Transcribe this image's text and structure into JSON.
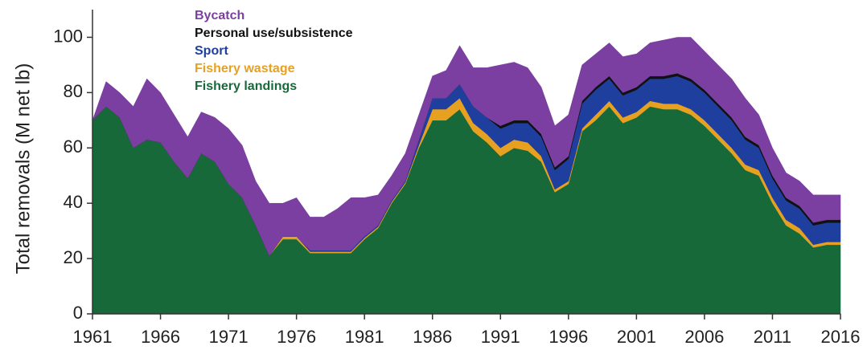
{
  "chart_data": {
    "type": "stacked_area",
    "y_label": "Total removals (M net lb)",
    "x": [
      1961,
      1962,
      1963,
      1964,
      1965,
      1966,
      1967,
      1968,
      1969,
      1970,
      1971,
      1972,
      1973,
      1974,
      1975,
      1976,
      1977,
      1978,
      1979,
      1980,
      1981,
      1982,
      1983,
      1984,
      1985,
      1986,
      1987,
      1988,
      1989,
      1990,
      1991,
      1992,
      1993,
      1994,
      1995,
      1996,
      1997,
      1998,
      1999,
      2000,
      2001,
      2002,
      2003,
      2004,
      2005,
      2006,
      2007,
      2008,
      2009,
      2010,
      2011,
      2012,
      2013,
      2014,
      2015,
      2016
    ],
    "series": [
      {
        "name": "Fishery landings",
        "color": "#17693a",
        "values": [
          70,
          75,
          71,
          60,
          63,
          62,
          55,
          49,
          58,
          55,
          47,
          42,
          32,
          21,
          27,
          27,
          22,
          22,
          22,
          22,
          27,
          31,
          40,
          47,
          60,
          70,
          70,
          74,
          66,
          62,
          57,
          60,
          59,
          55,
          44,
          47,
          66,
          70,
          75,
          69,
          71,
          75,
          74,
          74,
          72,
          68,
          63,
          58,
          52,
          50,
          40,
          32,
          29,
          24,
          25,
          25
        ]
      },
      {
        "name": "Fishery wastage",
        "color": "#e8a020",
        "values": [
          0,
          0,
          0,
          0,
          0,
          0,
          0,
          0,
          0,
          0,
          0,
          0,
          0,
          0,
          1,
          1,
          0.5,
          0.5,
          0.5,
          0.5,
          0.5,
          0.5,
          0.5,
          0.5,
          1,
          4,
          4,
          4,
          3,
          3,
          3,
          3,
          3,
          2,
          1,
          1,
          1,
          2,
          2,
          2,
          2,
          2,
          2,
          2,
          2,
          2,
          2,
          2,
          2,
          2,
          2,
          2,
          2,
          1,
          1,
          1
        ]
      },
      {
        "name": "Sport",
        "color": "#1f3f9f",
        "values": [
          0,
          0,
          0,
          0,
          0,
          0,
          0,
          0,
          0,
          0,
          0,
          0,
          0,
          0,
          0,
          0,
          0.5,
          0.5,
          0.5,
          0.5,
          0.5,
          0.5,
          0.5,
          0.5,
          2,
          4,
          4,
          5,
          6,
          6,
          7,
          6,
          7,
          7,
          7,
          8,
          9,
          9,
          8,
          8,
          8,
          8,
          9,
          10,
          10,
          10,
          10,
          10,
          9,
          8,
          7,
          7,
          7,
          7,
          7,
          7
        ]
      },
      {
        "name": "Personal use/subsistence",
        "color": "#111111",
        "values": [
          0,
          0,
          0,
          0,
          0,
          0,
          0,
          0,
          0,
          0,
          0,
          0,
          0,
          0,
          0,
          0,
          0,
          0,
          0,
          0,
          0,
          0,
          0,
          0,
          0,
          0,
          0,
          0,
          0,
          0,
          1,
          1,
          1,
          1,
          1,
          1,
          1,
          1,
          1,
          1,
          1,
          1,
          1,
          1,
          1,
          1,
          1,
          1,
          1,
          1,
          1,
          1,
          1,
          1,
          1,
          1
        ]
      },
      {
        "name": "Bycatch",
        "color": "#7a3fa0",
        "values": [
          0,
          9,
          9,
          15,
          22,
          18,
          17,
          15,
          15,
          16,
          20,
          19,
          16,
          19,
          12,
          14,
          12,
          12,
          15,
          19,
          14,
          11,
          9,
          10,
          9,
          8,
          10,
          14,
          14,
          18,
          22,
          21,
          19,
          17,
          15,
          15,
          13,
          12,
          12,
          13,
          12,
          12,
          13,
          13,
          15,
          14,
          14,
          14,
          14,
          11,
          10,
          9,
          9,
          10,
          9,
          9
        ]
      }
    ],
    "xlim": [
      1961,
      2016
    ],
    "xticks": [
      1961,
      1966,
      1971,
      1976,
      1981,
      1986,
      1991,
      1996,
      2001,
      2006,
      2011,
      2016
    ],
    "ylim": [
      0,
      110
    ],
    "yticks": [
      0,
      20,
      40,
      60,
      80,
      100
    ]
  }
}
